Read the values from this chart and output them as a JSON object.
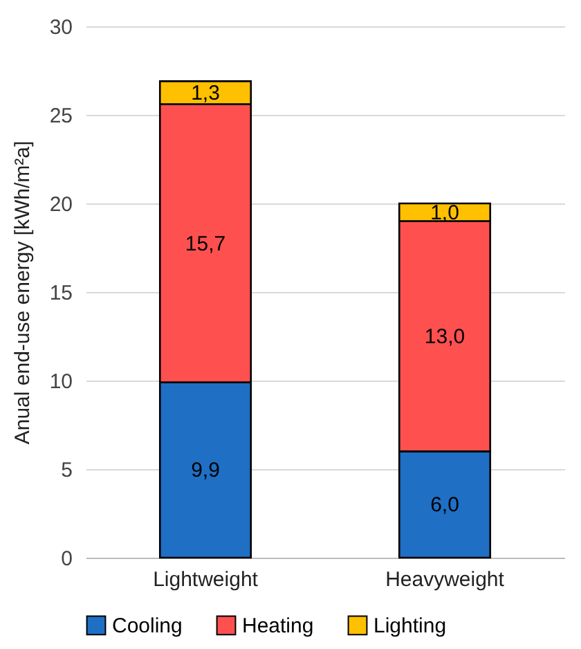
{
  "chart_data": {
    "type": "bar",
    "stacked": true,
    "ylabel": "Anual end-use energy  [kWh/m²a]",
    "categories": [
      "Lightweight",
      "Heavyweight"
    ],
    "series": [
      {
        "name": "Cooling",
        "color": "#1f6fc5",
        "values": [
          9.9,
          6.0
        ],
        "value_labels": [
          "9,9",
          "6,0"
        ]
      },
      {
        "name": "Heating",
        "color": "#ff5050",
        "values": [
          15.7,
          13.0
        ],
        "value_labels": [
          "15,7",
          "13,0"
        ]
      },
      {
        "name": "Lighting",
        "color": "#ffc000",
        "values": [
          1.3,
          1.0
        ],
        "value_labels": [
          "1,3",
          "1,0"
        ]
      }
    ],
    "ylim": [
      0,
      30
    ],
    "yticks": [
      0,
      5,
      10,
      15,
      20,
      25,
      30
    ],
    "grid": "y",
    "legend": "bottom"
  }
}
